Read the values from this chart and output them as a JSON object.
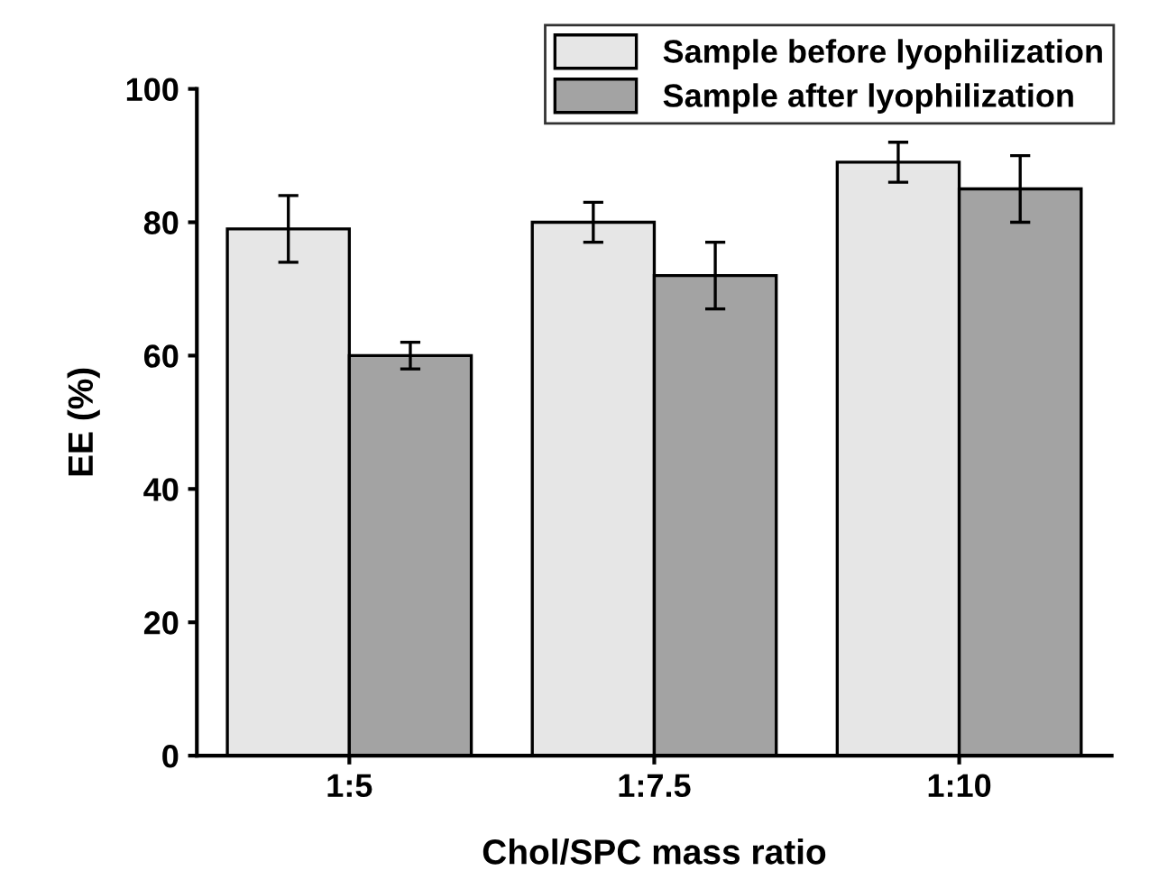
{
  "chart_data": {
    "type": "bar",
    "xlabel": "Chol/SPC mass ratio",
    "ylabel": "EE (%)",
    "categories": [
      "1:5",
      "1:7.5",
      "1:10"
    ],
    "series": [
      {
        "name": "Sample before lyophilization",
        "color": "#e6e6e6",
        "values": [
          79,
          80,
          89
        ],
        "errors": [
          5,
          3,
          3
        ]
      },
      {
        "name": "Sample after lyophilization",
        "color": "#a3a3a3",
        "values": [
          60,
          72,
          85
        ],
        "errors": [
          2,
          5,
          5
        ]
      }
    ],
    "ylim": [
      0,
      100
    ],
    "yticks": [
      0,
      20,
      40,
      60,
      80,
      100
    ],
    "grid": false,
    "legend": "top right"
  }
}
